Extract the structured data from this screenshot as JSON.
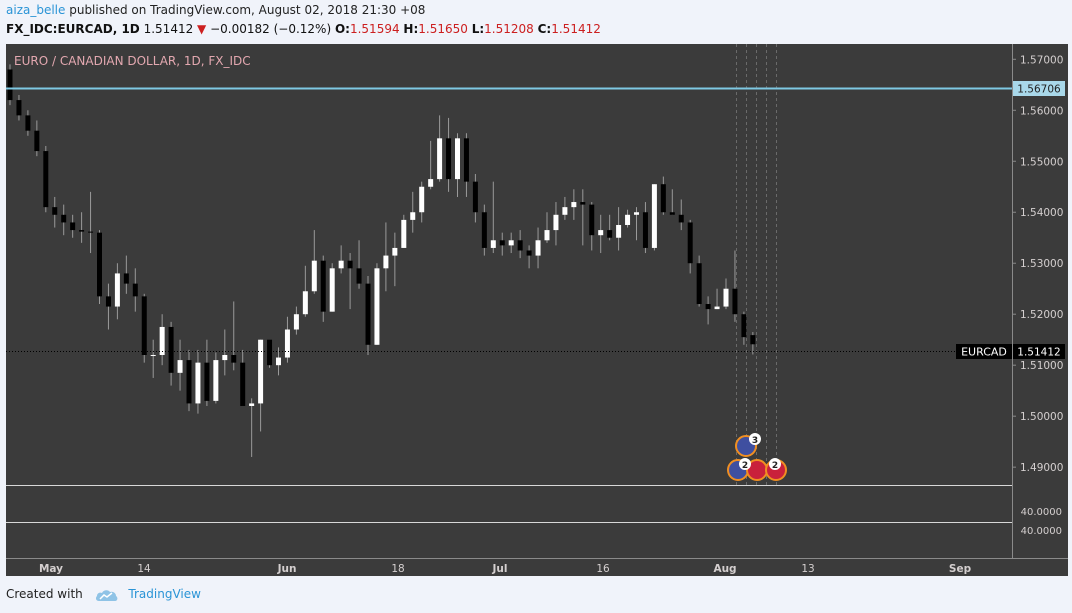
{
  "header": {
    "author": "aiza_belle",
    "published_text": "published on TradingView.com, August 02, 2018 21:30 +08",
    "symbol_line": "FX_IDC:EURCAD, 1D",
    "last": "1.51412",
    "change_arrow": "▼",
    "change": "−0.00182 (−0.12%)",
    "o_label": "O:",
    "o": "1.51594",
    "h_label": "H:",
    "h": "1.51650",
    "l_label": "L:",
    "l": "1.51208",
    "c_label": "C:",
    "c": "1.51412"
  },
  "chart_title": "EURO / CANADIAN DOLLAR, 1D, FX_IDC",
  "colors": {
    "background": "#3b3b3b",
    "up_candle": "#ffffff",
    "down_candle": "#000000",
    "wick": "#9a9a9a",
    "level_line": "#7ec8e3",
    "axis_text": "#d4cfcf",
    "title_text": "#e3a8b0",
    "event_ring": "#f08f22"
  },
  "price_axis": {
    "ticks": [
      "1.57000",
      "1.56000",
      "1.55000",
      "1.54000",
      "1.53000",
      "1.52000",
      "1.51000",
      "1.50000",
      "1.49000"
    ],
    "level_label": "1.56706",
    "last_symbol": "EURCAD",
    "last_label": "1.51412"
  },
  "sub_pane": {
    "ticks": [
      "40.0000",
      "40.0000"
    ]
  },
  "time_axis": {
    "labels": [
      "May",
      "14",
      "Jun",
      "18",
      "Jul",
      "16",
      "Aug",
      "13",
      "Sep"
    ]
  },
  "events": {
    "upper_badge": "3",
    "lower_badge_1": "2",
    "lower_badge_2": "2"
  },
  "footer": {
    "created_with": "Created with",
    "brand": "TradingView"
  },
  "chart_data": {
    "type": "candlestick",
    "title": "EURO / CANADIAN DOLLAR, 1D, FX_IDC",
    "ylim": [
      1.4865,
      1.573
    ],
    "horizontal_level": 1.56706,
    "last_price": 1.51412,
    "candles": [
      [
        1.568,
        1.569,
        1.561,
        1.562
      ],
      [
        1.562,
        1.563,
        1.558,
        1.559
      ],
      [
        1.559,
        1.56,
        1.555,
        1.556
      ],
      [
        1.556,
        1.558,
        1.551,
        1.552
      ],
      [
        1.552,
        1.553,
        1.54,
        1.541
      ],
      [
        1.541,
        1.543,
        1.537,
        1.5395
      ],
      [
        1.5395,
        1.5415,
        1.5355,
        1.538
      ],
      [
        1.538,
        1.5395,
        1.535,
        1.5365
      ],
      [
        1.5365,
        1.54,
        1.534,
        1.5362
      ],
      [
        1.5362,
        1.544,
        1.532,
        1.536
      ],
      [
        1.536,
        1.5365,
        1.522,
        1.5235
      ],
      [
        1.5235,
        1.526,
        1.517,
        1.5215
      ],
      [
        1.5215,
        1.53,
        1.519,
        1.528
      ],
      [
        1.528,
        1.5315,
        1.524,
        1.526
      ],
      [
        1.526,
        1.529,
        1.5205,
        1.5235
      ],
      [
        1.5235,
        1.524,
        1.5105,
        1.512
      ],
      [
        1.512,
        1.515,
        1.5075,
        1.512
      ],
      [
        1.512,
        1.52,
        1.51,
        1.5175
      ],
      [
        1.5175,
        1.5185,
        1.506,
        1.5085
      ],
      [
        1.5085,
        1.515,
        1.505,
        1.511
      ],
      [
        1.511,
        1.513,
        1.501,
        1.5025
      ],
      [
        1.5025,
        1.513,
        1.5005,
        1.5105
      ],
      [
        1.5105,
        1.515,
        1.502,
        1.503
      ],
      [
        1.503,
        1.5125,
        1.5025,
        1.511
      ],
      [
        1.511,
        1.517,
        1.508,
        1.512
      ],
      [
        1.512,
        1.5225,
        1.509,
        1.5105
      ],
      [
        1.5105,
        1.513,
        1.502,
        1.502
      ],
      [
        1.502,
        1.5035,
        1.492,
        1.5025
      ],
      [
        1.5025,
        1.515,
        1.497,
        1.515
      ],
      [
        1.515,
        1.5145,
        1.5095,
        1.51
      ],
      [
        1.51,
        1.5135,
        1.508,
        1.5115
      ],
      [
        1.5115,
        1.5195,
        1.5105,
        1.517
      ],
      [
        1.517,
        1.5215,
        1.516,
        1.52
      ],
      [
        1.52,
        1.5295,
        1.5195,
        1.5245
      ],
      [
        1.5245,
        1.5365,
        1.524,
        1.5305
      ],
      [
        1.5305,
        1.5315,
        1.5185,
        1.5205
      ],
      [
        1.5205,
        1.53,
        1.5205,
        1.529
      ],
      [
        1.529,
        1.5335,
        1.528,
        1.5305
      ],
      [
        1.5305,
        1.532,
        1.521,
        1.529
      ],
      [
        1.529,
        1.5345,
        1.525,
        1.526
      ],
      [
        1.526,
        1.5275,
        1.512,
        1.514
      ],
      [
        1.514,
        1.53,
        1.514,
        1.529
      ],
      [
        1.529,
        1.538,
        1.5245,
        1.5315
      ],
      [
        1.5315,
        1.536,
        1.5255,
        1.533
      ],
      [
        1.533,
        1.5395,
        1.533,
        1.5385
      ],
      [
        1.5385,
        1.544,
        1.536,
        1.54
      ],
      [
        1.54,
        1.546,
        1.538,
        1.545
      ],
      [
        1.545,
        1.554,
        1.5445,
        1.5465
      ],
      [
        1.5465,
        1.559,
        1.546,
        1.5545
      ],
      [
        1.5545,
        1.5585,
        1.544,
        1.5465
      ],
      [
        1.5465,
        1.5555,
        1.543,
        1.5545
      ],
      [
        1.5545,
        1.5555,
        1.543,
        1.546
      ],
      [
        1.546,
        1.5475,
        1.538,
        1.54
      ],
      [
        1.54,
        1.5415,
        1.5315,
        1.533
      ],
      [
        1.533,
        1.546,
        1.532,
        1.5345
      ],
      [
        1.5345,
        1.536,
        1.5315,
        1.5335
      ],
      [
        1.5335,
        1.536,
        1.532,
        1.5345
      ],
      [
        1.5345,
        1.5365,
        1.531,
        1.5325
      ],
      [
        1.5325,
        1.5335,
        1.529,
        1.5315
      ],
      [
        1.5315,
        1.537,
        1.529,
        1.5345
      ],
      [
        1.5345,
        1.54,
        1.534,
        1.5365
      ],
      [
        1.5365,
        1.542,
        1.5335,
        1.5395
      ],
      [
        1.5395,
        1.543,
        1.5385,
        1.541
      ],
      [
        1.541,
        1.5445,
        1.5385,
        1.542
      ],
      [
        1.542,
        1.5445,
        1.5335,
        1.5415
      ],
      [
        1.5415,
        1.542,
        1.5325,
        1.5355
      ],
      [
        1.5355,
        1.5395,
        1.532,
        1.5365
      ],
      [
        1.5365,
        1.5395,
        1.5345,
        1.535
      ],
      [
        1.535,
        1.541,
        1.5325,
        1.5375
      ],
      [
        1.5375,
        1.5405,
        1.537,
        1.5395
      ],
      [
        1.5395,
        1.541,
        1.5345,
        1.54
      ],
      [
        1.54,
        1.542,
        1.532,
        1.533
      ],
      [
        1.533,
        1.5455,
        1.5325,
        1.5455
      ],
      [
        1.5455,
        1.547,
        1.5395,
        1.54
      ],
      [
        1.54,
        1.5445,
        1.5395,
        1.5395
      ],
      [
        1.5395,
        1.5425,
        1.5365,
        1.538
      ],
      [
        1.538,
        1.5385,
        1.528,
        1.53
      ],
      [
        1.53,
        1.5315,
        1.5215,
        1.522
      ],
      [
        1.522,
        1.5235,
        1.518,
        1.521
      ],
      [
        1.521,
        1.525,
        1.521,
        1.5215
      ],
      [
        1.5215,
        1.527,
        1.521,
        1.525
      ],
      [
        1.525,
        1.5325,
        1.5185,
        1.52
      ],
      [
        1.52,
        1.5205,
        1.514,
        1.5155
      ],
      [
        1.5159,
        1.5165,
        1.5121,
        1.5141
      ]
    ]
  }
}
